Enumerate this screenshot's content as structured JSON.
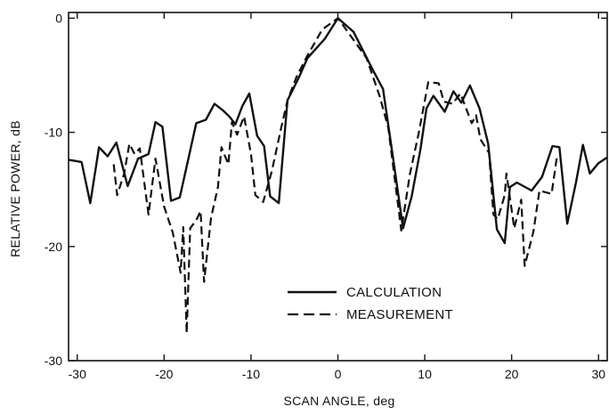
{
  "chart_data": {
    "type": "line",
    "xlabel": "SCAN ANGLE, deg",
    "ylabel": "RELATIVE POWER, dB",
    "xlim": [
      -31,
      31
    ],
    "ylim": [
      -30,
      0.5
    ],
    "xticks": [
      -30,
      -20,
      -10,
      0,
      10,
      20,
      30
    ],
    "yticks": [
      0,
      -10,
      -20,
      -30
    ],
    "xtick_labels": [
      "-30",
      "-20",
      "-10",
      "0",
      "10",
      "20",
      "30"
    ],
    "ytick_labels": [
      "0",
      "-10",
      "-20",
      "-30"
    ],
    "grid": false,
    "legend_position": "lower-center",
    "series": [
      {
        "name": "CALCULATION",
        "style": "solid",
        "color": "#111111",
        "points": [
          [
            -31,
            -12.4
          ],
          [
            -29.5,
            -12.6
          ],
          [
            -28.5,
            -16.2
          ],
          [
            -27.5,
            -11.3
          ],
          [
            -26.5,
            -12.1
          ],
          [
            -25.5,
            -10.9
          ],
          [
            -24.2,
            -14.7
          ],
          [
            -23,
            -12.3
          ],
          [
            -21.8,
            -11.9
          ],
          [
            -21,
            -9.1
          ],
          [
            -20.2,
            -9.5
          ],
          [
            -19.2,
            -16
          ],
          [
            -18.2,
            -15.7
          ],
          [
            -17,
            -11.6
          ],
          [
            -16.3,
            -9.2
          ],
          [
            -15.2,
            -8.9
          ],
          [
            -14.2,
            -7.5
          ],
          [
            -13.2,
            -8.1
          ],
          [
            -12.5,
            -8.6
          ],
          [
            -11.8,
            -9.3
          ],
          [
            -11,
            -7.7
          ],
          [
            -10.2,
            -6.6
          ],
          [
            -9.3,
            -10.3
          ],
          [
            -8.5,
            -11.2
          ],
          [
            -7.8,
            -15.6
          ],
          [
            -6.8,
            -16.2
          ],
          [
            -5.8,
            -7.2
          ],
          [
            -4.5,
            -5.2
          ],
          [
            -3.5,
            -3.5
          ],
          [
            -1.5,
            -1.8
          ],
          [
            0,
            0
          ],
          [
            1.8,
            -1.2
          ],
          [
            4,
            -4.5
          ],
          [
            5.2,
            -6.2
          ],
          [
            6.3,
            -12
          ],
          [
            7.5,
            -18.4
          ],
          [
            8.5,
            -15.6
          ],
          [
            9.5,
            -11.5
          ],
          [
            10.2,
            -7.9
          ],
          [
            11,
            -6.8
          ],
          [
            12.3,
            -8.2
          ],
          [
            13.3,
            -6.4
          ],
          [
            14.2,
            -7.4
          ],
          [
            15.2,
            -5.9
          ],
          [
            16.3,
            -7.9
          ],
          [
            17.3,
            -11
          ],
          [
            18.3,
            -18.5
          ],
          [
            19.2,
            -19.7
          ],
          [
            19.8,
            -14.8
          ],
          [
            20.6,
            -14.4
          ],
          [
            22.3,
            -15.1
          ],
          [
            23.5,
            -13.9
          ],
          [
            24.7,
            -11.2
          ],
          [
            25.5,
            -11.3
          ],
          [
            26.4,
            -18
          ],
          [
            27.4,
            -14.4
          ],
          [
            28.2,
            -11.1
          ],
          [
            29,
            -13.6
          ],
          [
            30,
            -12.7
          ],
          [
            31,
            -12.2
          ]
        ]
      },
      {
        "name": "MEASUREMENT",
        "style": "dashed",
        "color": "#111111",
        "points": [
          [
            -25.8,
            -12.8
          ],
          [
            -25.4,
            -15.5
          ],
          [
            -24.6,
            -13.6
          ],
          [
            -24,
            -11
          ],
          [
            -23.4,
            -11.9
          ],
          [
            -22.8,
            -11.4
          ],
          [
            -21.8,
            -17.2
          ],
          [
            -21,
            -12.3
          ],
          [
            -20,
            -16.5
          ],
          [
            -19,
            -18.8
          ],
          [
            -18.1,
            -22.3
          ],
          [
            -17.8,
            -18.3
          ],
          [
            -17.4,
            -27.6
          ],
          [
            -17,
            -18.4
          ],
          [
            -16.3,
            -17.7
          ],
          [
            -15.8,
            -16.9
          ],
          [
            -15.4,
            -23.1
          ],
          [
            -14.6,
            -17.5
          ],
          [
            -13.8,
            -14.8
          ],
          [
            -13.4,
            -11.3
          ],
          [
            -12.6,
            -12.8
          ],
          [
            -12.2,
            -9.1
          ],
          [
            -11.6,
            -10.2
          ],
          [
            -10.8,
            -8.6
          ],
          [
            -10,
            -11.9
          ],
          [
            -9.5,
            -15.5
          ],
          [
            -8.6,
            -16.1
          ],
          [
            -7.6,
            -13.4
          ],
          [
            -6.5,
            -9.5
          ],
          [
            -5.8,
            -7.2
          ],
          [
            -4.8,
            -5.2
          ],
          [
            -3.6,
            -3.4
          ],
          [
            -1.8,
            -1
          ],
          [
            0,
            0
          ],
          [
            1.8,
            -1.9
          ],
          [
            3.3,
            -3.5
          ],
          [
            4.8,
            -6.8
          ],
          [
            5.8,
            -9.6
          ],
          [
            7.3,
            -18.6
          ],
          [
            8.3,
            -13.6
          ],
          [
            9.3,
            -10.1
          ],
          [
            10.4,
            -5.6
          ],
          [
            11.6,
            -5.7
          ],
          [
            12.2,
            -7.3
          ],
          [
            13.2,
            -7.5
          ],
          [
            14.1,
            -6.6
          ],
          [
            15.4,
            -9.2
          ],
          [
            15.9,
            -8.5
          ],
          [
            16.4,
            -10.6
          ],
          [
            17.4,
            -11.8
          ],
          [
            17.9,
            -17.2
          ],
          [
            18.4,
            -17.6
          ],
          [
            19.2,
            -15.5
          ],
          [
            19.4,
            -13.6
          ],
          [
            20.3,
            -18.4
          ],
          [
            21.1,
            -15.9
          ],
          [
            21.5,
            -21.7
          ],
          [
            22.5,
            -18.7
          ],
          [
            23.2,
            -15.1
          ],
          [
            24.6,
            -15.4
          ],
          [
            25.2,
            -12.2
          ]
        ]
      }
    ]
  }
}
